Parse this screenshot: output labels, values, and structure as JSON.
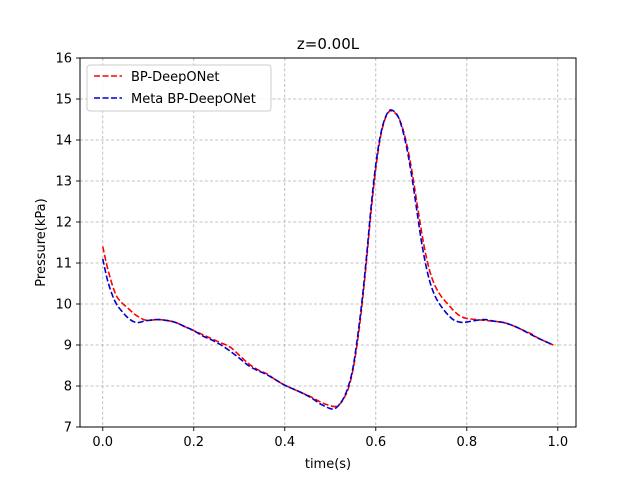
{
  "chart_data": {
    "type": "line",
    "title": "z=0.00L",
    "xlabel": "time(s)",
    "ylabel": "Pressure(kPa)",
    "xlim": [
      -0.05,
      1.04
    ],
    "ylim": [
      7,
      16
    ],
    "xticks": [
      0.0,
      0.2,
      0.4,
      0.6,
      0.8,
      1.0
    ],
    "xtick_labels": [
      "0.0",
      "0.2",
      "0.4",
      "0.6",
      "0.8",
      "1.0"
    ],
    "yticks": [
      7,
      8,
      9,
      10,
      11,
      12,
      13,
      14,
      15,
      16
    ],
    "ytick_labels": [
      "7",
      "8",
      "9",
      "10",
      "11",
      "12",
      "13",
      "14",
      "15",
      "16"
    ],
    "grid": true,
    "legend_position": "upper-left",
    "series": [
      {
        "name": "BP-DeepONet",
        "color": "#ff0000",
        "style": "dashed",
        "x": [
          0.0,
          0.01,
          0.02,
          0.03,
          0.04,
          0.05,
          0.06,
          0.07,
          0.08,
          0.09,
          0.1,
          0.12,
          0.14,
          0.16,
          0.18,
          0.2,
          0.22,
          0.24,
          0.26,
          0.28,
          0.3,
          0.32,
          0.34,
          0.36,
          0.38,
          0.4,
          0.42,
          0.44,
          0.46,
          0.48,
          0.5,
          0.51,
          0.52,
          0.53,
          0.54,
          0.55,
          0.56,
          0.57,
          0.58,
          0.59,
          0.6,
          0.61,
          0.62,
          0.63,
          0.64,
          0.65,
          0.66,
          0.67,
          0.68,
          0.69,
          0.7,
          0.71,
          0.72,
          0.73,
          0.74,
          0.75,
          0.76,
          0.77,
          0.78,
          0.79,
          0.8,
          0.82,
          0.84,
          0.86,
          0.88,
          0.9,
          0.92,
          0.94,
          0.96,
          0.98,
          0.99
        ],
        "y": [
          11.4,
          10.9,
          10.5,
          10.2,
          10.05,
          9.95,
          9.85,
          9.75,
          9.68,
          9.62,
          9.6,
          9.62,
          9.6,
          9.55,
          9.45,
          9.35,
          9.25,
          9.15,
          9.05,
          8.95,
          8.75,
          8.55,
          8.4,
          8.3,
          8.15,
          8.02,
          7.92,
          7.82,
          7.72,
          7.6,
          7.52,
          7.5,
          7.55,
          7.7,
          7.95,
          8.4,
          9.1,
          10.0,
          11.1,
          12.3,
          13.3,
          14.05,
          14.5,
          14.7,
          14.68,
          14.55,
          14.25,
          13.8,
          13.2,
          12.5,
          11.8,
          11.2,
          10.75,
          10.45,
          10.25,
          10.1,
          9.98,
          9.85,
          9.75,
          9.68,
          9.65,
          9.62,
          9.6,
          9.58,
          9.55,
          9.48,
          9.38,
          9.28,
          9.15,
          9.05,
          9.0
        ]
      },
      {
        "name": "Meta BP-DeepONet",
        "color": "#0000cc",
        "style": "dashed",
        "x": [
          0.0,
          0.01,
          0.02,
          0.03,
          0.04,
          0.05,
          0.06,
          0.07,
          0.08,
          0.09,
          0.1,
          0.12,
          0.14,
          0.16,
          0.18,
          0.2,
          0.22,
          0.24,
          0.26,
          0.28,
          0.3,
          0.32,
          0.34,
          0.36,
          0.38,
          0.4,
          0.42,
          0.44,
          0.46,
          0.48,
          0.5,
          0.51,
          0.52,
          0.53,
          0.54,
          0.55,
          0.56,
          0.57,
          0.58,
          0.59,
          0.6,
          0.61,
          0.62,
          0.63,
          0.64,
          0.65,
          0.66,
          0.67,
          0.68,
          0.69,
          0.7,
          0.71,
          0.72,
          0.73,
          0.74,
          0.75,
          0.76,
          0.77,
          0.78,
          0.79,
          0.8,
          0.82,
          0.84,
          0.86,
          0.88,
          0.9,
          0.92,
          0.94,
          0.96,
          0.98,
          0.99
        ],
        "y": [
          11.1,
          10.6,
          10.25,
          10.0,
          9.85,
          9.72,
          9.62,
          9.56,
          9.55,
          9.58,
          9.6,
          9.62,
          9.6,
          9.55,
          9.45,
          9.35,
          9.22,
          9.12,
          9.0,
          8.85,
          8.68,
          8.5,
          8.38,
          8.28,
          8.15,
          8.02,
          7.92,
          7.82,
          7.7,
          7.55,
          7.45,
          7.45,
          7.55,
          7.72,
          8.0,
          8.45,
          9.2,
          10.1,
          11.2,
          12.4,
          13.4,
          14.1,
          14.52,
          14.72,
          14.7,
          14.55,
          14.2,
          13.7,
          13.05,
          12.3,
          11.55,
          10.95,
          10.5,
          10.2,
          10.0,
          9.85,
          9.72,
          9.62,
          9.57,
          9.55,
          9.56,
          9.6,
          9.62,
          9.58,
          9.55,
          9.48,
          9.38,
          9.26,
          9.15,
          9.05,
          9.0
        ]
      }
    ]
  }
}
